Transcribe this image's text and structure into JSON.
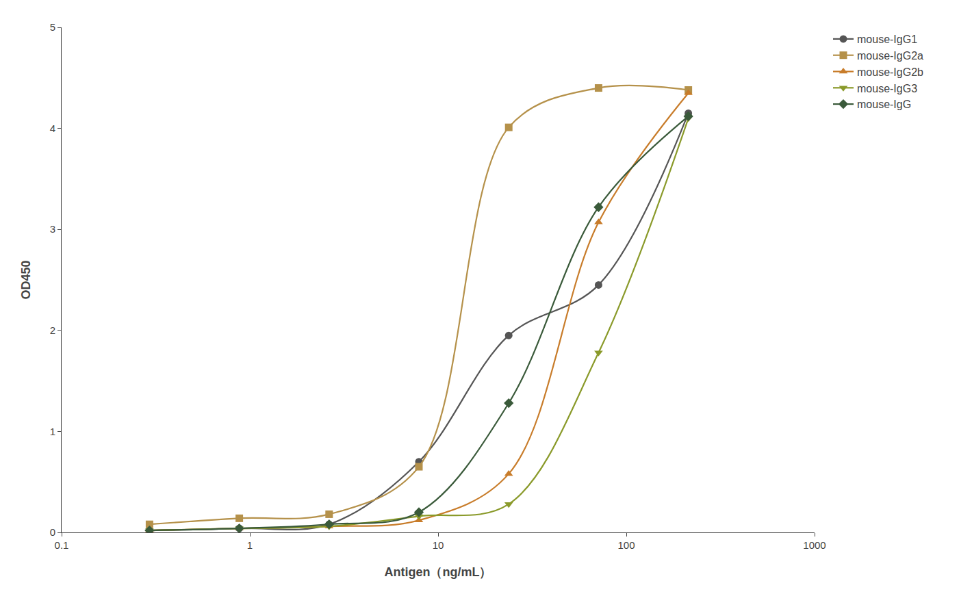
{
  "chart_data": {
    "type": "line",
    "xlabel": "Antigen（ng/mL）",
    "ylabel": "OD450",
    "log": "x",
    "xlim": [
      0.1,
      1000
    ],
    "xticks": [
      0.1,
      1,
      10,
      100,
      1000
    ],
    "ylim": [
      0.0,
      5.0
    ],
    "yticks": [
      0,
      1,
      2,
      3,
      4,
      5
    ],
    "grid": false,
    "legend": "upper right",
    "x": [
      0.293,
      0.879,
      2.637,
      7.91,
      23.73,
      71.19,
      213.57
    ],
    "series": [
      {
        "name": "mouse-IgG1",
        "color": "#555555",
        "marker": "circle",
        "values": [
          0.02,
          0.04,
          0.08,
          0.7,
          1.95,
          2.45,
          4.15
        ]
      },
      {
        "name": "mouse-IgG2a",
        "color": "#b5914a",
        "marker": "square",
        "values": [
          0.08,
          0.14,
          0.18,
          0.65,
          4.01,
          4.4,
          4.38
        ]
      },
      {
        "name": "mouse-IgG2b",
        "color": "#c87c2a",
        "marker": "triangle-up",
        "values": [
          0.02,
          0.04,
          0.06,
          0.12,
          0.58,
          3.07,
          4.35
        ]
      },
      {
        "name": "mouse-IgG3",
        "color": "#8a9a2a",
        "marker": "triangle-down",
        "values": [
          0.02,
          0.04,
          0.06,
          0.16,
          0.28,
          1.78,
          4.1
        ]
      },
      {
        "name": "mouse-IgG",
        "color": "#3a5a3a",
        "marker": "diamond",
        "values": [
          0.02,
          0.04,
          0.08,
          0.2,
          1.28,
          3.22,
          4.12
        ]
      }
    ]
  }
}
